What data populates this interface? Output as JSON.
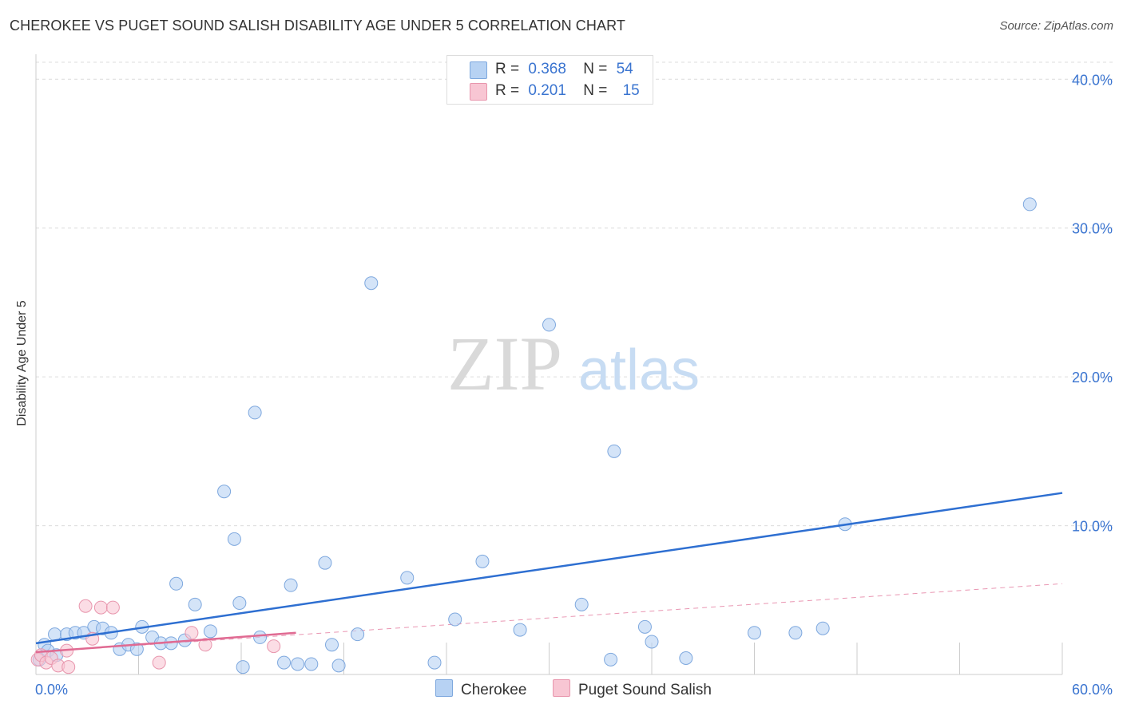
{
  "header": {
    "title": "CHEROKEE VS PUGET SOUND SALISH DISABILITY AGE UNDER 5 CORRELATION CHART",
    "source": "Source: ZipAtlas.com"
  },
  "watermark": {
    "zip": "ZIP",
    "atlas": "atlas"
  },
  "legend": {
    "r_label": "R =",
    "n_label": "N =",
    "entries": [
      {
        "r": "0.368",
        "n": "54"
      },
      {
        "r": "0.201",
        "n": "15"
      }
    ]
  },
  "colors": {
    "cherokee_fill": "#b7d2f3",
    "cherokee_stroke": "#7ea8de",
    "cherokee_line": "#2e6fd1",
    "salish_fill": "#f8c6d3",
    "salish_stroke": "#e896ad",
    "salish_line": "#e06a92",
    "tick_label": "#3a74d0"
  },
  "chart_data": {
    "type": "scatter",
    "title": "CHEROKEE VS PUGET SOUND SALISH DISABILITY AGE UNDER 5 CORRELATION CHART",
    "xlabel": "",
    "ylabel": "Disability Age Under 5",
    "xlim": [
      0,
      60
    ],
    "ylim": [
      0,
      42
    ],
    "x_tick_labels": [
      {
        "value": 0,
        "label": "0.0%"
      },
      {
        "value": 60,
        "label": "60.0%"
      }
    ],
    "y_tick_labels": [
      {
        "value": 10,
        "label": "10.0%"
      },
      {
        "value": 20,
        "label": "20.0%"
      },
      {
        "value": 30,
        "label": "30.0%"
      },
      {
        "value": 40,
        "label": "40.0%"
      }
    ],
    "x_minor_ticks": [
      0,
      6,
      12,
      18,
      24,
      30,
      36,
      42,
      48,
      54,
      60
    ],
    "series": [
      {
        "name": "Cherokee",
        "points": [
          [
            0.2,
            1.0
          ],
          [
            0.5,
            2.0
          ],
          [
            0.7,
            1.6
          ],
          [
            1.1,
            2.7
          ],
          [
            1.8,
            2.7
          ],
          [
            2.3,
            2.8
          ],
          [
            2.8,
            2.8
          ],
          [
            3.4,
            3.2
          ],
          [
            3.9,
            3.1
          ],
          [
            4.4,
            2.8
          ],
          [
            4.9,
            1.7
          ],
          [
            5.4,
            2.0
          ],
          [
            5.9,
            1.7
          ],
          [
            6.2,
            3.2
          ],
          [
            6.8,
            2.5
          ],
          [
            7.3,
            2.1
          ],
          [
            7.9,
            2.1
          ],
          [
            8.2,
            6.1
          ],
          [
            8.7,
            2.3
          ],
          [
            9.3,
            4.7
          ],
          [
            10.2,
            2.9
          ],
          [
            11.0,
            12.3
          ],
          [
            11.6,
            9.1
          ],
          [
            11.9,
            4.8
          ],
          [
            12.1,
            0.5
          ],
          [
            12.8,
            17.6
          ],
          [
            13.1,
            2.5
          ],
          [
            14.5,
            0.8
          ],
          [
            14.9,
            6.0
          ],
          [
            15.3,
            0.7
          ],
          [
            16.1,
            0.7
          ],
          [
            16.9,
            7.5
          ],
          [
            17.3,
            2.0
          ],
          [
            17.7,
            0.6
          ],
          [
            18.8,
            2.7
          ],
          [
            19.6,
            26.3
          ],
          [
            21.7,
            6.5
          ],
          [
            23.3,
            0.8
          ],
          [
            24.5,
            3.7
          ],
          [
            26.1,
            7.6
          ],
          [
            28.3,
            3.0
          ],
          [
            30.0,
            23.5
          ],
          [
            31.9,
            4.7
          ],
          [
            33.6,
            1.0
          ],
          [
            33.8,
            15.0
          ],
          [
            35.6,
            3.2
          ],
          [
            36.0,
            2.2
          ],
          [
            38.0,
            1.1
          ],
          [
            42.0,
            2.8
          ],
          [
            44.4,
            2.8
          ],
          [
            46.0,
            3.1
          ],
          [
            47.3,
            10.1
          ],
          [
            58.1,
            31.6
          ],
          [
            1.2,
            1.3
          ]
        ],
        "trend": {
          "x": [
            0,
            60
          ],
          "y": [
            2.1,
            12.2
          ]
        }
      },
      {
        "name": "Puget Sound Salish",
        "points": [
          [
            0.1,
            1.0
          ],
          [
            0.3,
            1.3
          ],
          [
            0.6,
            0.8
          ],
          [
            0.9,
            1.1
          ],
          [
            1.3,
            0.6
          ],
          [
            1.9,
            0.5
          ],
          [
            1.8,
            1.6
          ],
          [
            2.9,
            4.6
          ],
          [
            3.3,
            2.4
          ],
          [
            3.8,
            4.5
          ],
          [
            4.5,
            4.5
          ],
          [
            7.2,
            0.8
          ],
          [
            9.1,
            2.8
          ],
          [
            9.9,
            2.0
          ],
          [
            13.9,
            1.9
          ]
        ],
        "trend": {
          "x": [
            0,
            15.2
          ],
          "y": [
            1.5,
            2.8
          ]
        },
        "trend_extended": {
          "x": [
            0,
            60
          ],
          "y": [
            1.5,
            6.1
          ]
        }
      }
    ],
    "legend": [
      "Cherokee",
      "Puget Sound Salish"
    ],
    "grid": true
  }
}
